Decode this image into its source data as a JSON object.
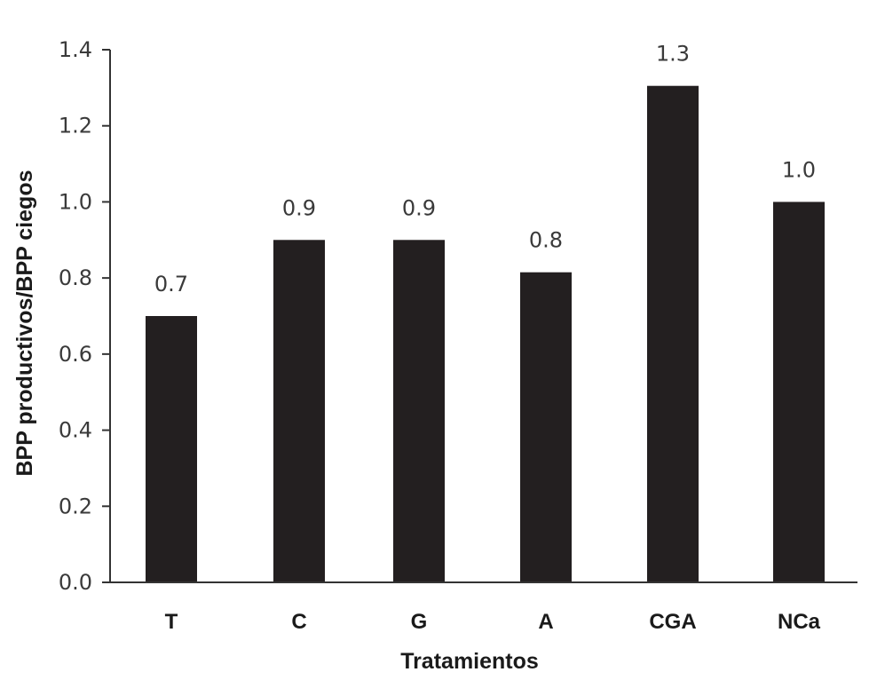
{
  "chart_data": {
    "type": "bar",
    "categories": [
      "T",
      "C",
      "G",
      "A",
      "CGA",
      "NCa"
    ],
    "values": [
      0.7,
      0.9,
      0.9,
      0.815,
      1.305,
      1.0
    ],
    "data_labels": [
      "0.7",
      "0.9",
      "0.9",
      "0.8",
      "1.3",
      "1.0"
    ],
    "xlabel": "Tratamientos",
    "ylabel": "BPP productivos/BPP ciegos",
    "ylim": [
      0,
      1.4
    ],
    "yticks": [
      "0.0",
      "0.2",
      "0.4",
      "0.6",
      "0.8",
      "1.0",
      "1.2",
      "1.4"
    ],
    "grid": false,
    "legend": "none",
    "bar_color": "#231f20"
  }
}
